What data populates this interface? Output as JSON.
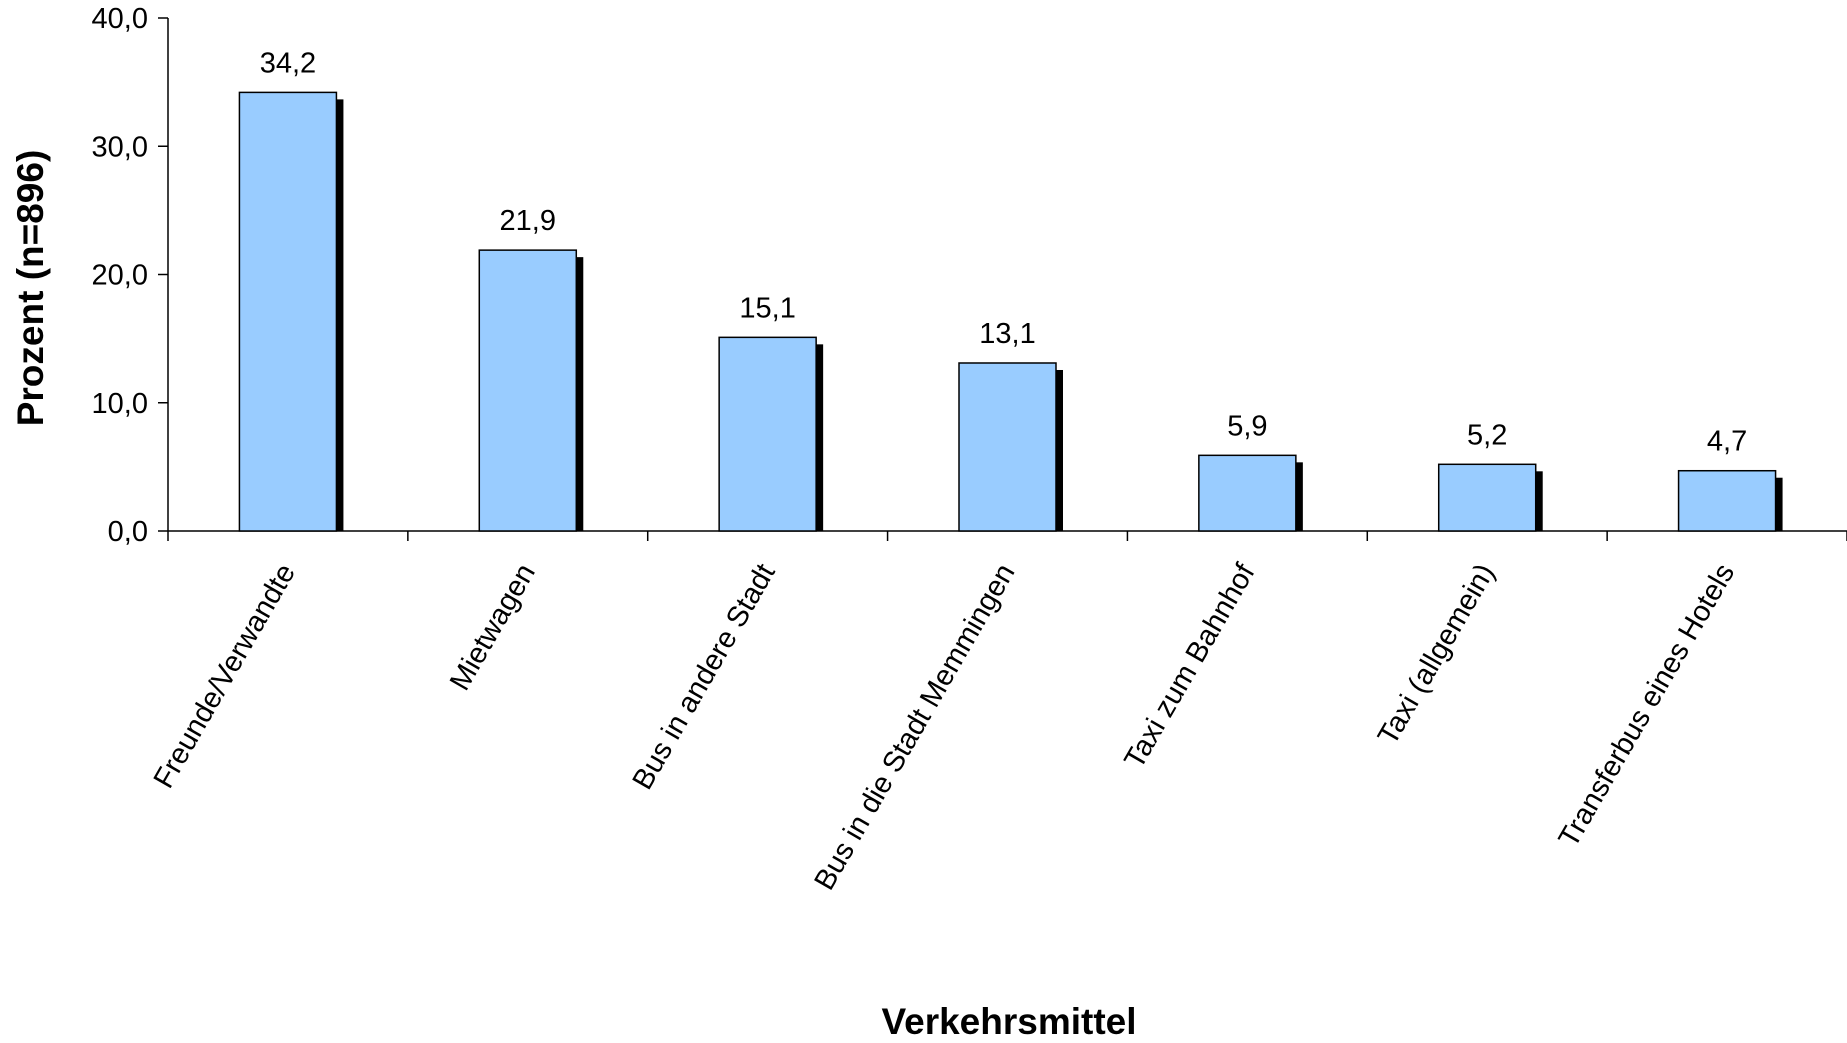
{
  "chart_data": {
    "type": "bar",
    "title": "",
    "xlabel": "Verkehrsmittel",
    "ylabel": "Prozent (n=896)",
    "categories": [
      "Freunde/Verwandte",
      "Mietwagen",
      "Bus in andere Stadt",
      "Bus in die Stadt Memmingen",
      "Taxi zum Bahnhof",
      "Taxi (allgemein)",
      "Transferbus eines Hotels"
    ],
    "values": [
      34.2,
      21.9,
      15.1,
      13.1,
      5.9,
      5.2,
      4.7
    ],
    "value_labels": [
      "34,2",
      "21,9",
      "15,1",
      "13,1",
      "5,9",
      "5,2",
      "4,7"
    ],
    "ylim": [
      0,
      40
    ],
    "yticks": [
      0,
      10,
      20,
      30,
      40
    ],
    "ytick_labels": [
      "0,0",
      "10,0",
      "20,0",
      "30,0",
      "40,0"
    ],
    "grid": false,
    "legend": "none",
    "colors": {
      "bar_fill": "#99ccff",
      "bar_stroke": "#000000",
      "bar_shadow": "#000000"
    }
  }
}
